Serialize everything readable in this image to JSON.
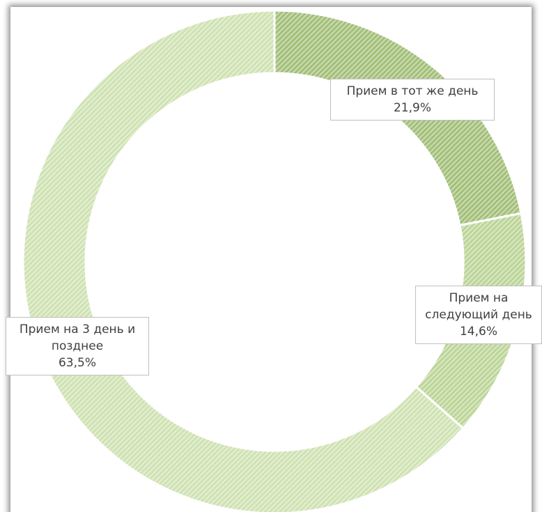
{
  "chart_data": {
    "type": "donut",
    "categories": [
      "Прием в тот же день",
      "Прием на следующий день",
      "Прием на 3 день и позднее"
    ],
    "values": [
      21.9,
      14.6,
      63.5
    ],
    "value_labels": [
      "21,9%",
      "14,6%",
      "63,5%"
    ],
    "colors": [
      "#a3bf78",
      "#bcd597",
      "#cfe2b2"
    ]
  }
}
